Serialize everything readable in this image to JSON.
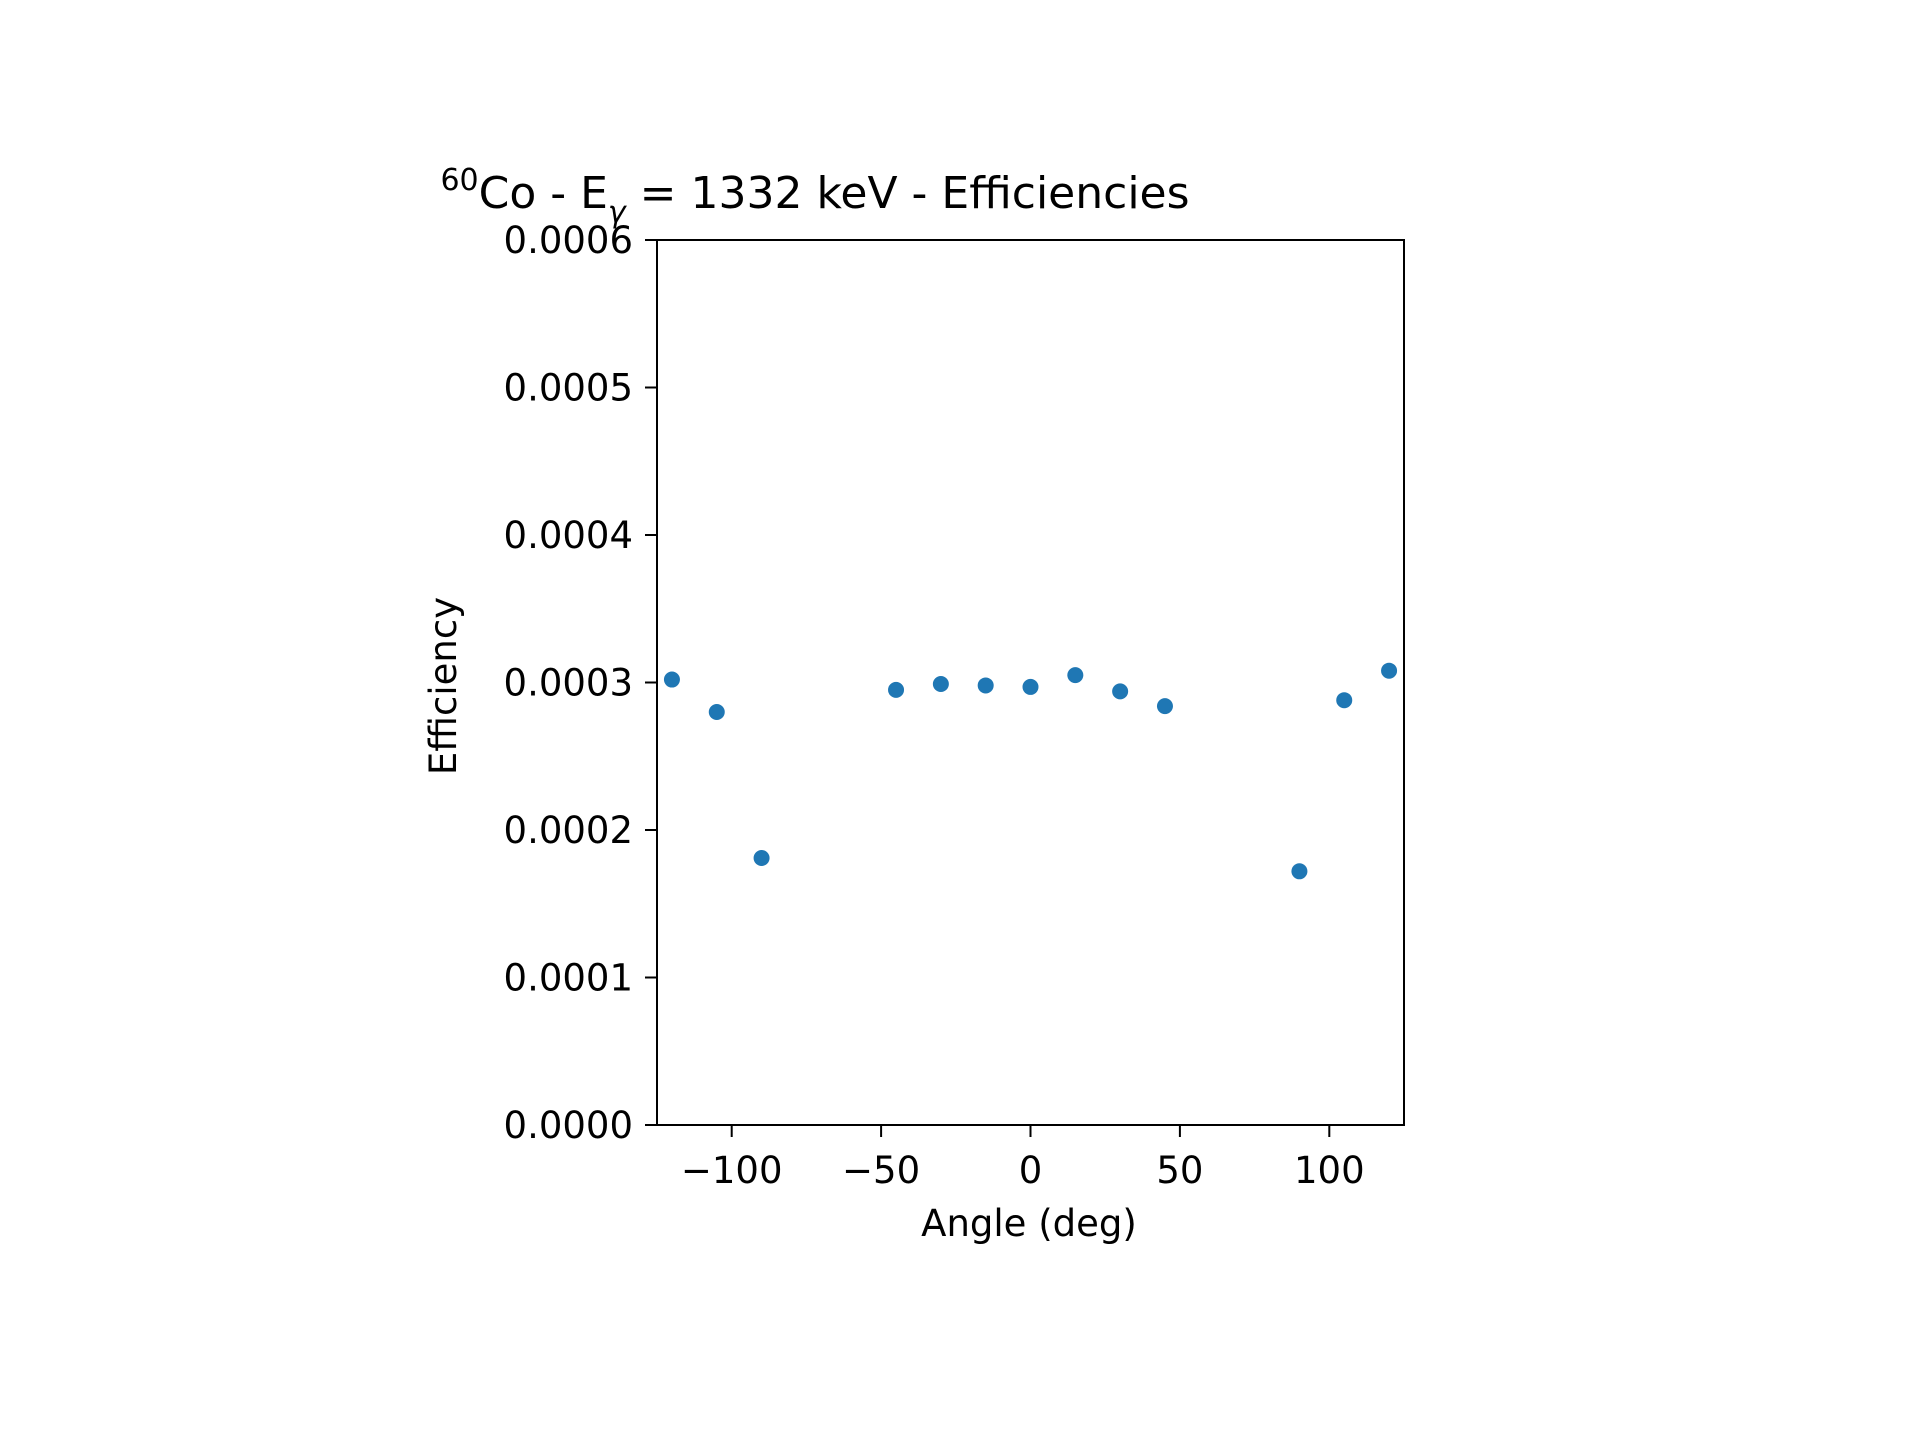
{
  "chart_data": {
    "type": "scatter",
    "title": {
      "isotope_mass": "60",
      "isotope_symbol": "Co - E",
      "energy_subscript": "γ",
      "rest": " = 1332 keV - Efficiencies"
    },
    "xlabel": "Angle (deg)",
    "ylabel": "Efficiency",
    "xlim": [
      -125,
      125
    ],
    "ylim": [
      0,
      0.0006
    ],
    "xticks": [
      {
        "value": -100,
        "label": "−100"
      },
      {
        "value": -50,
        "label": "−50"
      },
      {
        "value": 0,
        "label": "0"
      },
      {
        "value": 50,
        "label": "50"
      },
      {
        "value": 100,
        "label": "100"
      }
    ],
    "yticks": [
      {
        "value": 0,
        "label": "0.0000"
      },
      {
        "value": 0.0001,
        "label": "0.0001"
      },
      {
        "value": 0.0002,
        "label": "0.0002"
      },
      {
        "value": 0.0003,
        "label": "0.0003"
      },
      {
        "value": 0.0004,
        "label": "0.0004"
      },
      {
        "value": 0.0005,
        "label": "0.0005"
      },
      {
        "value": 0.0006,
        "label": "0.0006"
      }
    ],
    "grid": false,
    "marker_color": "#1f77b4",
    "x": [
      -120,
      -105,
      -90,
      -45,
      -30,
      -15,
      0,
      15,
      30,
      45,
      90,
      105,
      120
    ],
    "y": [
      0.000302,
      0.00028,
      0.000181,
      0.000295,
      0.000299,
      0.000298,
      0.000297,
      0.000305,
      0.000294,
      0.000284,
      0.000172,
      0.000288,
      0.000308
    ]
  }
}
